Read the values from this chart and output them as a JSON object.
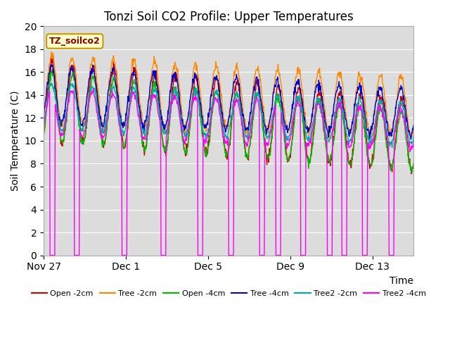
{
  "title": "Tonzi Soil CO2 Profile: Upper Temperatures",
  "xlabel": "Time",
  "ylabel": "Soil Temperature (C)",
  "label_box": "TZ_soilco2",
  "ylim": [
    0,
    20
  ],
  "yticks": [
    0,
    2,
    4,
    6,
    8,
    10,
    12,
    14,
    16,
    18,
    20
  ],
  "xtick_labels": [
    "Nov 27",
    "Dec 1",
    "Dec 5",
    "Dec 9",
    "Dec 13"
  ],
  "xtick_positions_days": [
    0,
    4,
    8,
    12,
    16
  ],
  "total_days": 18,
  "legend_entries": [
    "Open -2cm",
    "Tree -2cm",
    "Open -4cm",
    "Tree -4cm",
    "Tree2 -2cm",
    "Tree2 -4cm"
  ],
  "line_colors": [
    "#cc0000",
    "#ff8800",
    "#00bb00",
    "#0000cc",
    "#00aaaa",
    "#ff00ff"
  ],
  "bg_color": "#dcdcdc",
  "grid_color": "#ffffff",
  "title_fontsize": 12,
  "axis_label_fontsize": 10,
  "legend_fontsize": 8,
  "label_box_color": "#ffffcc",
  "label_box_edge": "#cc9900",
  "label_box_text_color": "#8b0000"
}
